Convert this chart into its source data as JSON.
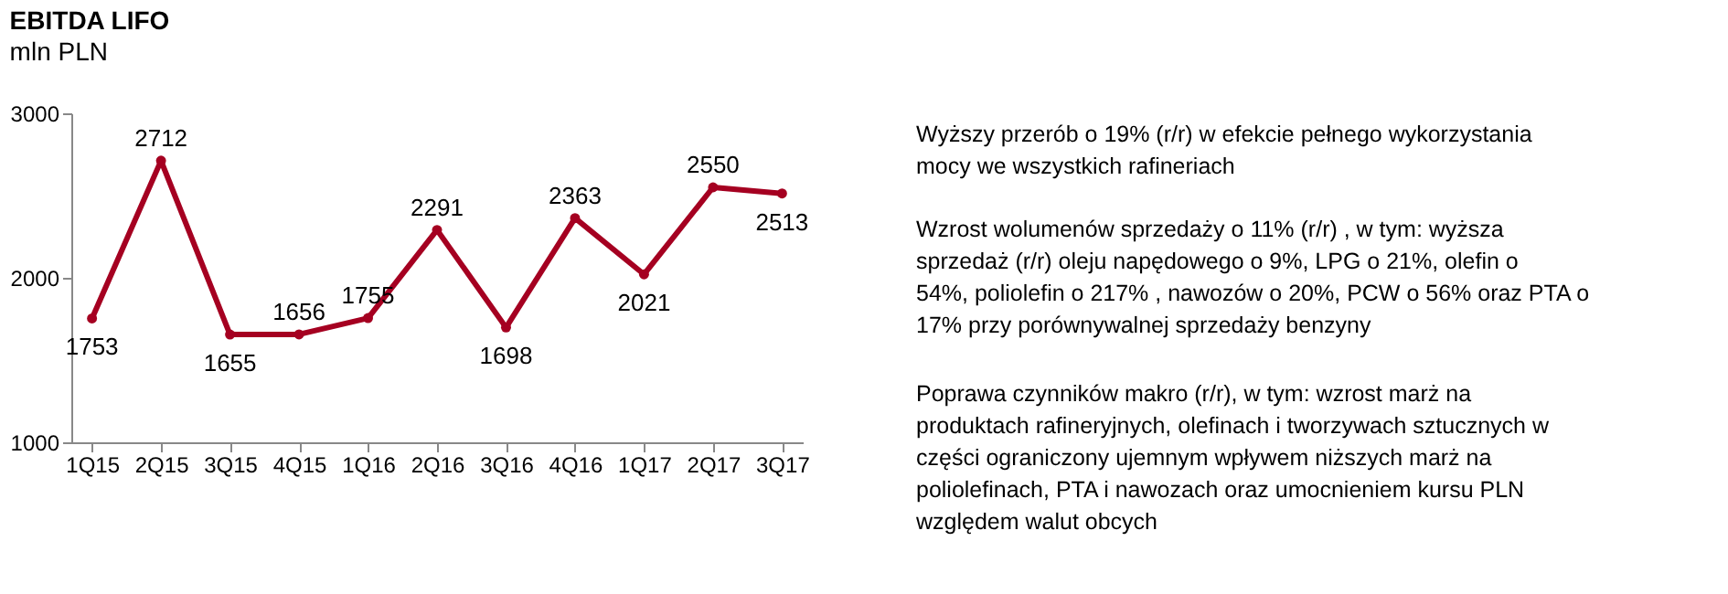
{
  "chart_data": [
    {
      "type": "line",
      "title": "EBITDA LIFO",
      "subtitle": "mln PLN",
      "categories": [
        "1Q15",
        "2Q15",
        "3Q15",
        "4Q15",
        "1Q16",
        "2Q16",
        "3Q16",
        "4Q16",
        "1Q17",
        "2Q17",
        "3Q17"
      ],
      "series": [
        {
          "color": "#a50021",
          "values": [
            1753,
            2712,
            1655,
            1656,
            1755,
            2291,
            1698,
            2363,
            2021,
            2550,
            2513
          ]
        }
      ],
      "ylim": [
        1000,
        3000
      ],
      "yticks": [
        1000,
        2000,
        3000
      ],
      "data_labels": true,
      "marker": "circle",
      "grid": false,
      "legend": false
    },
    {
      "type": "other",
      "annotations": [
        "Wyższy przerób o 19% (r/r) w efekcie pełnego wykorzystania mocy we wszystkich rafineriach",
        "Wzrost wolumenów sprzedaży o 11% (r/r) , w tym: wyższa sprzedaż (r/r) oleju napędowego o 9%, LPG o 21%,  olefin o 54%, poliolefin o 217% , nawozów o 20%,  PCW o  56% oraz PTA o 17% przy porównywalnej sprzedaży benzyny",
        "Poprawa czynników makro (r/r), w tym: wzrost marż na produktach rafineryjnych, olefinach i tworzywach sztucznych w części ograniczony ujemnym wpływem niższych marż na poliolefinach, PTA i nawozach oraz umocnieniem kursu PLN względem walut obcych"
      ]
    }
  ]
}
